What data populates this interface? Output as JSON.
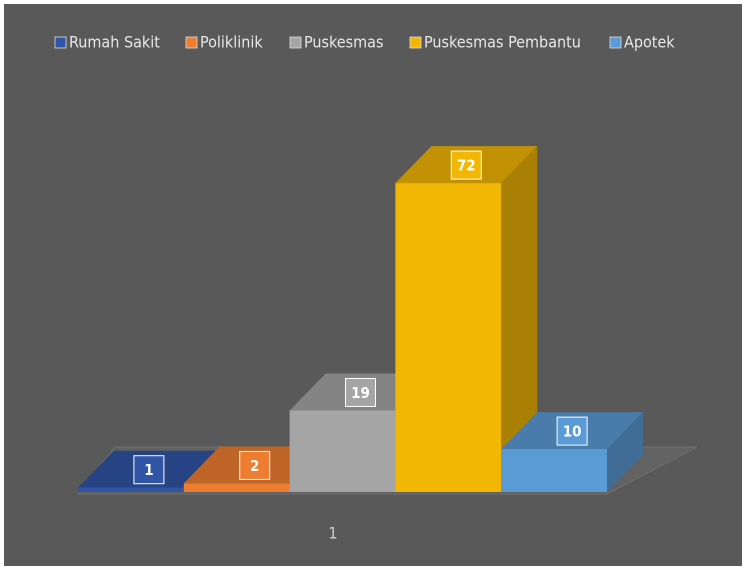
{
  "chart_data": {
    "type": "bar3d",
    "categories": [
      "1"
    ],
    "series": [
      {
        "name": "Rumah Sakit",
        "color": "#2f55a4",
        "values": [
          1
        ]
      },
      {
        "name": "Poliklinik",
        "color": "#ed7d31",
        "values": [
          2
        ]
      },
      {
        "name": "Puskesmas",
        "color": "#a5a5a5",
        "values": [
          19
        ]
      },
      {
        "name": "Puskesmas Pembantu",
        "color": "#f2b705",
        "values": [
          72
        ]
      },
      {
        "name": "Apotek",
        "color": "#5b9bd5",
        "values": [
          10
        ]
      }
    ],
    "legend": "top"
  }
}
